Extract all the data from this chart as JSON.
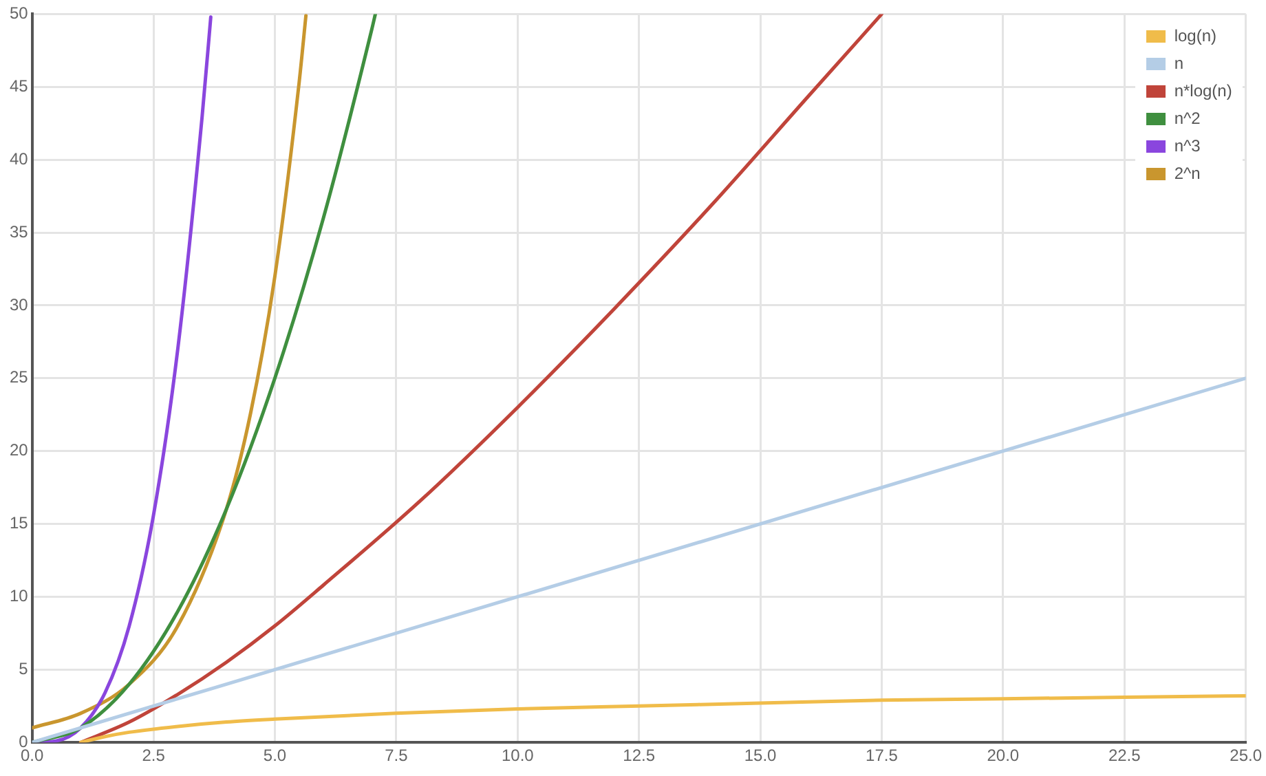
{
  "chart_data": {
    "type": "line",
    "xlim": [
      0,
      25
    ],
    "ylim": [
      0,
      50
    ],
    "xticks": [
      {
        "value": 0,
        "label": "0.0"
      },
      {
        "value": 2.5,
        "label": "2.5"
      },
      {
        "value": 5,
        "label": "5.0"
      },
      {
        "value": 7.5,
        "label": "7.5"
      },
      {
        "value": 10,
        "label": "10.0"
      },
      {
        "value": 12.5,
        "label": "12.5"
      },
      {
        "value": 15,
        "label": "15.0"
      },
      {
        "value": 17.5,
        "label": "17.5"
      },
      {
        "value": 20,
        "label": "20.0"
      },
      {
        "value": 22.5,
        "label": "22.5"
      },
      {
        "value": 25,
        "label": "25.0"
      }
    ],
    "yticks": [
      0,
      5,
      10,
      15,
      20,
      25,
      30,
      35,
      40,
      45,
      50
    ],
    "grid": true,
    "legend": "top right",
    "marker": "none",
    "line_style": "solid",
    "series": [
      {
        "name": "log(n)",
        "color": "#f0bc4a",
        "x": [
          1,
          1.5,
          2,
          3,
          4,
          5,
          7.5,
          10,
          12.5,
          15,
          17.5,
          20,
          22.5,
          25
        ],
        "values": [
          0,
          0.4,
          0.7,
          1.1,
          1.4,
          1.6,
          2.0,
          2.3,
          2.5,
          2.7,
          2.9,
          3.0,
          3.1,
          3.2
        ]
      },
      {
        "name": "n",
        "color": "#b4cde6",
        "x": [
          0,
          25
        ],
        "values": [
          0,
          25
        ]
      },
      {
        "name": "n*log(n)",
        "color": "#c0443a",
        "x": [
          1,
          2,
          3,
          4,
          5,
          6,
          8,
          10,
          12,
          14,
          16,
          17.5
        ],
        "values": [
          0,
          1.4,
          3.3,
          5.5,
          8.0,
          10.8,
          16.6,
          23.0,
          29.8,
          36.9,
          44.4,
          50
        ]
      },
      {
        "name": "n^2",
        "color": "#3f8f3f",
        "x": [
          0,
          1,
          2,
          3,
          4,
          5,
          6,
          7,
          7.07
        ],
        "values": [
          0,
          1,
          4,
          9,
          16,
          25,
          36,
          49,
          50
        ]
      },
      {
        "name": "n^3",
        "color": "#8a46de",
        "x": [
          0,
          0.5,
          1,
          1.5,
          2,
          2.5,
          3,
          3.5,
          3.68
        ],
        "values": [
          0,
          0.1,
          1,
          3.4,
          8,
          15.6,
          27,
          42.9,
          49.8
        ]
      },
      {
        "name": "2^n",
        "color": "#c9962e",
        "x": [
          0,
          1,
          2,
          3,
          4,
          4.5,
          5,
          5.5,
          5.64
        ],
        "values": [
          1,
          2,
          4,
          8,
          16,
          22.6,
          32,
          45.3,
          49.9
        ]
      }
    ]
  }
}
